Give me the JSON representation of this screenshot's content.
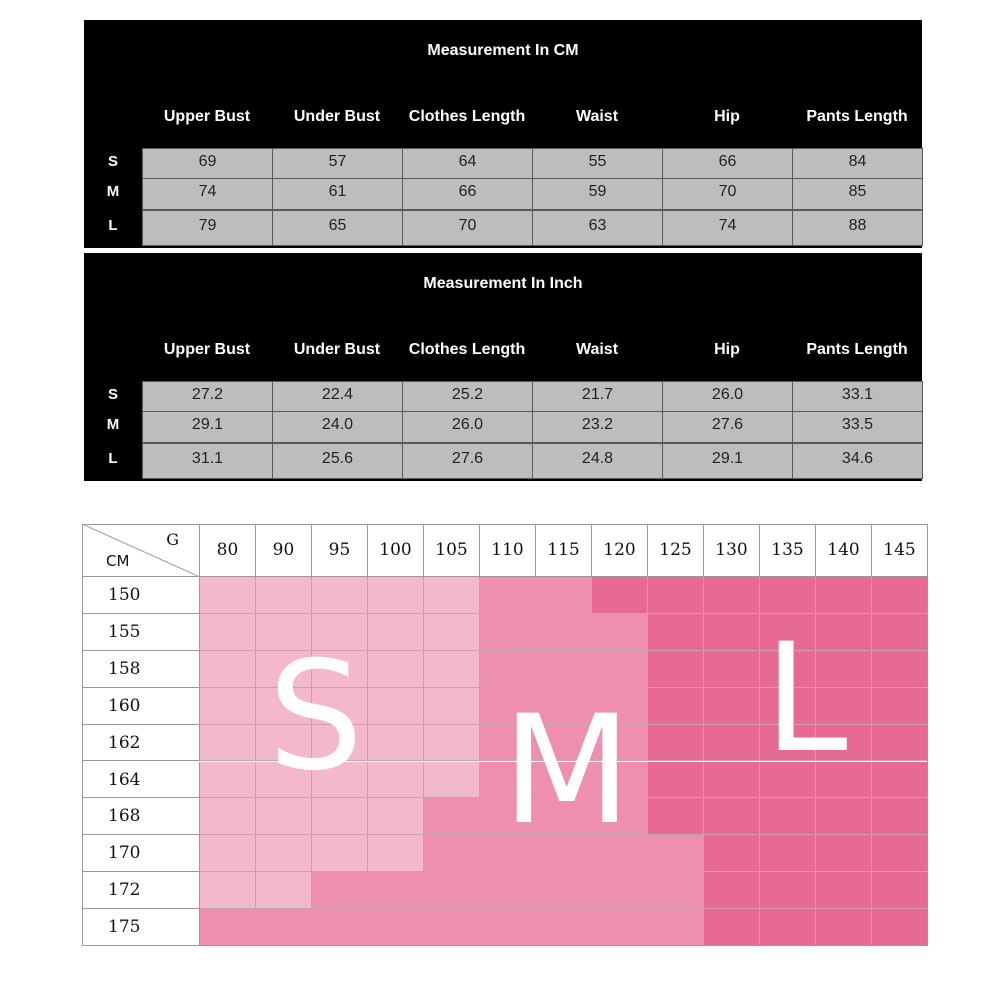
{
  "cm_table": {
    "title": "Measurement In CM",
    "headers": [
      "Upper Bust",
      "Under Bust",
      "Clothes Length",
      "Waist",
      "Hip",
      "Pants Length"
    ],
    "rows": [
      {
        "size": "S",
        "values": [
          "69",
          "57",
          "64",
          "55",
          "66",
          "84"
        ]
      },
      {
        "size": "M",
        "values": [
          "74",
          "61",
          "66",
          "59",
          "70",
          "85"
        ]
      },
      {
        "size": "L",
        "values": [
          "79",
          "65",
          "70",
          "63",
          "74",
          "88"
        ]
      }
    ]
  },
  "inch_table": {
    "title": "Measurement In Inch",
    "headers": [
      "Upper Bust",
      "Under Bust",
      "Clothes Length",
      "Waist",
      "Hip",
      "Pants Length"
    ],
    "rows": [
      {
        "size": "S",
        "values": [
          "27.2",
          "22.4",
          "25.2",
          "21.7",
          "26.0",
          "33.1"
        ]
      },
      {
        "size": "M",
        "values": [
          "29.1",
          "24.0",
          "26.0",
          "23.2",
          "27.6",
          "33.5"
        ]
      },
      {
        "size": "L",
        "values": [
          "31.1",
          "25.6",
          "27.6",
          "24.8",
          "29.1",
          "34.6"
        ]
      }
    ]
  },
  "size_grid": {
    "corner_top": "G",
    "corner_bottom": "CM",
    "weights": [
      "80",
      "90",
      "95",
      "100",
      "105",
      "110",
      "115",
      "120",
      "125",
      "130",
      "135",
      "140",
      "145"
    ],
    "heights": [
      "150",
      "155",
      "158",
      "160",
      "162",
      "164",
      "168",
      "170",
      "172",
      "175"
    ],
    "size_letters": {
      "s": "S",
      "m": "M",
      "l": "L"
    },
    "colors": {
      "s": "#f4b8cc",
      "m": "#ee8fae",
      "l": "#e76a93"
    },
    "cells": [
      "SSSSSMMLLLLLL",
      "SSSSSMMMLLLLL",
      "SSSSSMMMLLLLL",
      "SSSSSMMMLLLLL",
      "SSSSSMMMLLLLL",
      "SSSSSMMMLLLLL",
      "SSSSMMMMLLLLL",
      "SSSSMMMMMLLLL",
      "SSMMMMMMMLLLL",
      "MMMMMMMMMLLLL"
    ]
  }
}
